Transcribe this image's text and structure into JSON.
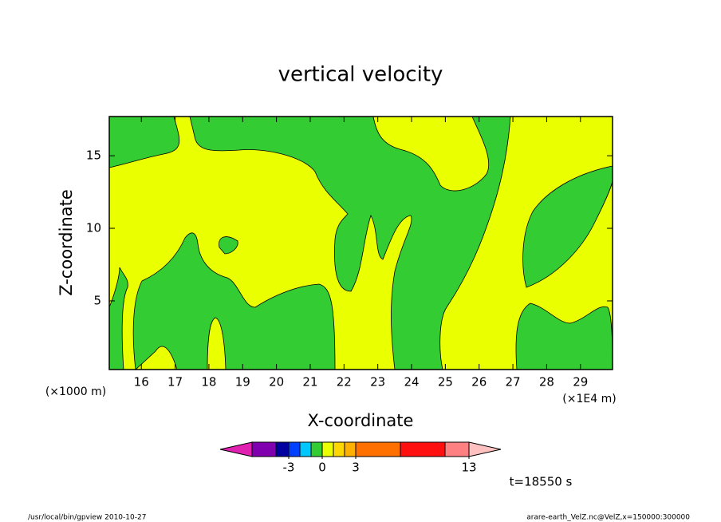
{
  "chart_data": {
    "type": "contour",
    "title": "vertical velocity",
    "xlabel": "X-coordinate",
    "ylabel": "Z-coordinate",
    "x_unit_label": "(×1E4 m)",
    "y_unit_label": "(×1000 m)",
    "xlim": [
      15.05,
      29.95
    ],
    "xticks": [
      16,
      17,
      18,
      19,
      20,
      21,
      22,
      23,
      24,
      25,
      26,
      27,
      28,
      29
    ],
    "ylim": [
      0.27,
      17.7
    ],
    "yticks": [
      5,
      10,
      15
    ],
    "colorbar": {
      "colors": [
        "#e020b0",
        "#8000b0",
        "#0000a0",
        "#0040ff",
        "#00c8ff",
        "#33cc33",
        "#eaff00",
        "#ffd700",
        "#ffb000",
        "#ff7000",
        "#ff1010",
        "#ff8080",
        "#ffc0c0"
      ],
      "ticks": [
        -3,
        0,
        3,
        13
      ]
    },
    "time_label": "t=18550 s",
    "footer_left": "/usr/local/bin/gpview  2010-10-27",
    "footer_right": "arare-earth_VelZ.nc@VelZ,x=150000:300000"
  }
}
